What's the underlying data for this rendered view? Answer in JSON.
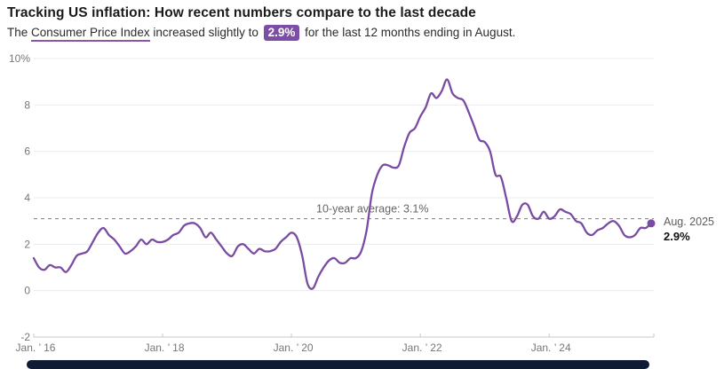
{
  "header": {
    "title": "Tracking US inflation: How recent numbers compare to the last decade",
    "subtitle_prefix": "The ",
    "subtitle_link": "Consumer Price Index",
    "subtitle_mid": " increased slightly to ",
    "subtitle_badge": "2.9%",
    "subtitle_suffix": " for the last 12 months ending in August."
  },
  "colors": {
    "accent_purple": "#7a4ba2",
    "badge_purple": "#7d4ea6",
    "underline_purple": "#8757ae",
    "title_text": "#1a1a1a",
    "body_text": "#2b2b2b",
    "axis_text": "#777777",
    "gridline": "#ebebeb",
    "axis_line": "#c9c9c9",
    "dashed_line": "#8a8a8a",
    "scrollbar_dark": "#0e1b33"
  },
  "annotations": {
    "average_line": {
      "label": "10-year average: 3.1%",
      "value": 3.1
    },
    "endpoint": {
      "date_label": "Aug. 2025",
      "value_label": "2.9%",
      "value": 2.9
    }
  },
  "chart_data": {
    "type": "line",
    "title": "Tracking US inflation: How recent numbers compare to the last decade",
    "series_name": "Consumer Price Index, 12-month % change",
    "x_start_label": "Jan 2016",
    "x_end_label": "Aug 2025",
    "x_tick_labels": [
      "Jan. ’ 16",
      "Jan. ’ 18",
      "Jan. ’ 20",
      "Jan. ’ 22",
      "Jan. ’ 24"
    ],
    "x_tick_month_indices": [
      0,
      24,
      48,
      72,
      96
    ],
    "y_tick_labels": [
      "-2",
      "0",
      "2",
      "4",
      "6",
      "8",
      "10%"
    ],
    "y_tick_values": [
      -2,
      0,
      2,
      4,
      6,
      8,
      10
    ],
    "ylim": [
      -2,
      10
    ],
    "grid": "horizontal",
    "legend": "none",
    "monthly_values": [
      1.4,
      1.0,
      0.9,
      1.1,
      1.0,
      1.0,
      0.8,
      1.1,
      1.5,
      1.6,
      1.7,
      2.1,
      2.5,
      2.7,
      2.4,
      2.2,
      1.9,
      1.6,
      1.7,
      1.9,
      2.2,
      2.0,
      2.2,
      2.1,
      2.1,
      2.2,
      2.4,
      2.5,
      2.8,
      2.9,
      2.9,
      2.7,
      2.3,
      2.5,
      2.2,
      1.9,
      1.6,
      1.5,
      1.9,
      2.0,
      1.8,
      1.6,
      1.8,
      1.7,
      1.7,
      1.8,
      2.1,
      2.3,
      2.5,
      2.3,
      1.5,
      0.3,
      0.1,
      0.6,
      1.0,
      1.3,
      1.4,
      1.2,
      1.2,
      1.4,
      1.4,
      1.7,
      2.6,
      4.2,
      5.0,
      5.4,
      5.4,
      5.3,
      5.4,
      6.2,
      6.8,
      7.0,
      7.5,
      7.9,
      8.5,
      8.3,
      8.6,
      9.1,
      8.5,
      8.3,
      8.2,
      7.7,
      7.1,
      6.5,
      6.4,
      6.0,
      5.0,
      4.9,
      4.0,
      3.0,
      3.2,
      3.7,
      3.7,
      3.2,
      3.1,
      3.4,
      3.1,
      3.2,
      3.5,
      3.4,
      3.3,
      3.0,
      2.9,
      2.5,
      2.4,
      2.6,
      2.7,
      2.9,
      3.0,
      2.8,
      2.4,
      2.3,
      2.4,
      2.7,
      2.7,
      2.9
    ]
  }
}
